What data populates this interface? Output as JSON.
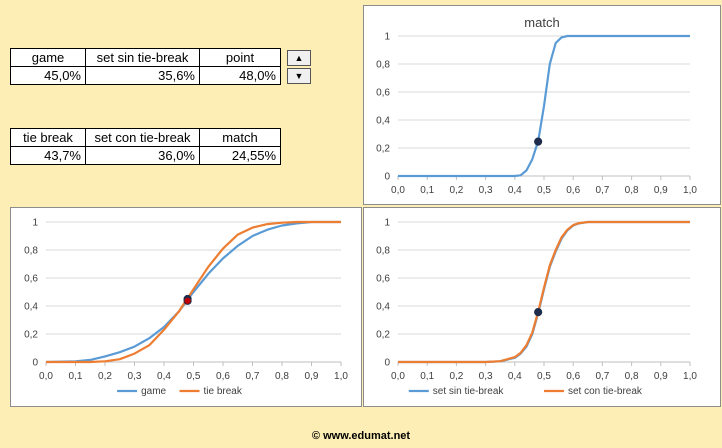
{
  "table1": {
    "headers": [
      "game",
      "set sin tie-break",
      "point"
    ],
    "values": [
      "45,0%",
      "35,6%",
      "48,0%"
    ]
  },
  "table2": {
    "headers": [
      "tie break",
      "set con tie-break",
      "match"
    ],
    "values": [
      "43,7%",
      "36,0%",
      "24,55%"
    ]
  },
  "spinner": {
    "up_icon": "triangle-up-icon",
    "down_icon": "triangle-down-icon"
  },
  "footer": "© www.edumat.net",
  "colors": {
    "blue": "#5b9bd5",
    "orange": "#ed7d31",
    "marker": "#1f2d4d",
    "marker_red": "#c00000",
    "grid": "#d9d9d9"
  },
  "chart_data": [
    {
      "type": "line",
      "title": "match",
      "x_ticks": [
        "0,0",
        "0,1",
        "0,2",
        "0,3",
        "0,4",
        "0,5",
        "0,6",
        "0,7",
        "0,8",
        "0,9",
        "1,0"
      ],
      "y_ticks": [
        "0",
        "0,2",
        "0,4",
        "0,6",
        "0,8",
        "1"
      ],
      "xlim": [
        0,
        1
      ],
      "ylim": [
        0,
        1
      ],
      "series": [
        {
          "color": "#5b9bd5",
          "x": [
            0,
            0.4,
            0.42,
            0.44,
            0.46,
            0.48,
            0.5,
            0.52,
            0.54,
            0.56,
            0.58,
            1.0
          ],
          "values": [
            0,
            0,
            0.005,
            0.04,
            0.12,
            0.25,
            0.5,
            0.8,
            0.95,
            0.99,
            1,
            1
          ]
        }
      ],
      "marker": {
        "x": 0.48,
        "y": 0.2455
      }
    },
    {
      "type": "line",
      "x_ticks": [
        "0,0",
        "0,1",
        "0,2",
        "0,3",
        "0,4",
        "0,5",
        "0,6",
        "0,7",
        "0,8",
        "0,9",
        "1,0"
      ],
      "y_ticks": [
        "0",
        "0,2",
        "0,4",
        "0,6",
        "0,8",
        "1"
      ],
      "xlim": [
        0,
        1
      ],
      "ylim": [
        0,
        1
      ],
      "legend": "bottom",
      "series": [
        {
          "name": "game",
          "color": "#5b9bd5",
          "x": [
            0,
            0.1,
            0.15,
            0.2,
            0.25,
            0.3,
            0.35,
            0.4,
            0.45,
            0.5,
            0.55,
            0.6,
            0.65,
            0.7,
            0.75,
            0.8,
            0.85,
            0.9,
            1.0
          ],
          "values": [
            0,
            0.005,
            0.015,
            0.04,
            0.07,
            0.11,
            0.17,
            0.25,
            0.36,
            0.5,
            0.63,
            0.74,
            0.83,
            0.9,
            0.945,
            0.975,
            0.99,
            1,
            1
          ]
        },
        {
          "name": "tie break",
          "color": "#ed7d31",
          "x": [
            0,
            0.15,
            0.2,
            0.25,
            0.3,
            0.35,
            0.4,
            0.45,
            0.5,
            0.55,
            0.6,
            0.65,
            0.7,
            0.75,
            0.8,
            0.85,
            0.9,
            1.0
          ],
          "values": [
            0,
            0,
            0.005,
            0.02,
            0.06,
            0.12,
            0.23,
            0.36,
            0.52,
            0.68,
            0.81,
            0.91,
            0.96,
            0.985,
            0.995,
            1,
            1,
            1
          ]
        }
      ],
      "markers": [
        {
          "x": 0.48,
          "y": 0.45,
          "color": "#1f2d4d"
        },
        {
          "x": 0.48,
          "y": 0.437,
          "color": "#c00000"
        }
      ]
    },
    {
      "type": "line",
      "x_ticks": [
        "0,0",
        "0,1",
        "0,2",
        "0,3",
        "0,4",
        "0,5",
        "0,6",
        "0,7",
        "0,8",
        "0,9",
        "1,0"
      ],
      "y_ticks": [
        "0",
        "0,2",
        "0,4",
        "0,6",
        "0,8",
        "1"
      ],
      "xlim": [
        0,
        1
      ],
      "ylim": [
        0,
        1
      ],
      "legend": "bottom",
      "series": [
        {
          "name": "set sin tie-break",
          "color": "#5b9bd5",
          "x": [
            0,
            0.3,
            0.35,
            0.4,
            0.42,
            0.44,
            0.46,
            0.48,
            0.5,
            0.52,
            0.54,
            0.56,
            0.58,
            0.6,
            0.62,
            0.65,
            1.0
          ],
          "values": [
            0,
            0,
            0.005,
            0.03,
            0.06,
            0.11,
            0.2,
            0.35,
            0.52,
            0.68,
            0.79,
            0.88,
            0.94,
            0.975,
            0.99,
            1,
            1
          ]
        },
        {
          "name": "set con tie-break",
          "color": "#ed7d31",
          "x": [
            0,
            0.3,
            0.35,
            0.4,
            0.42,
            0.44,
            0.46,
            0.48,
            0.5,
            0.52,
            0.54,
            0.56,
            0.58,
            0.6,
            0.62,
            0.65,
            1.0
          ],
          "values": [
            0,
            0,
            0.006,
            0.035,
            0.065,
            0.12,
            0.21,
            0.36,
            0.53,
            0.69,
            0.8,
            0.89,
            0.945,
            0.978,
            0.992,
            1,
            1
          ]
        }
      ],
      "marker": {
        "x": 0.48,
        "y": 0.356
      }
    }
  ]
}
